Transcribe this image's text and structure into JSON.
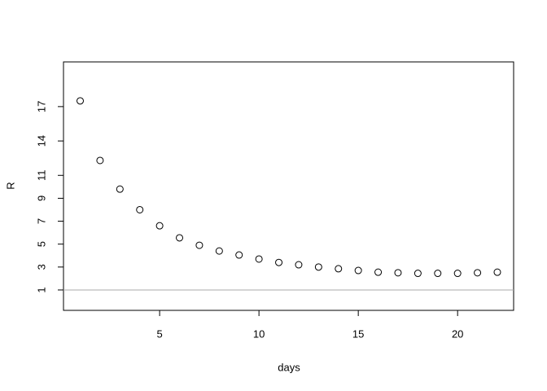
{
  "chart_data": {
    "type": "scatter",
    "x_label": "days",
    "y_label": "R",
    "x": [
      1,
      2,
      3,
      4,
      5,
      6,
      7,
      8,
      9,
      10,
      11,
      12,
      13,
      14,
      15,
      16,
      17,
      18,
      19,
      20,
      21,
      22
    ],
    "series": [
      {
        "color": "#000000",
        "values": [
          17.5,
          12.3,
          9.8,
          8.0,
          6.6,
          5.55,
          4.9,
          4.4,
          4.05,
          3.7,
          3.4,
          3.2,
          3.0,
          2.85,
          2.7,
          2.55,
          2.5,
          2.45,
          2.45,
          2.45,
          2.5,
          2.55
        ]
      }
    ],
    "xlim": [
      0.16,
      22.82
    ],
    "ylim": [
      -0.78,
      20.9
    ],
    "xticks": [
      5,
      10,
      15,
      20
    ],
    "yticks": [
      1,
      3,
      5,
      7,
      9,
      11,
      14,
      17
    ],
    "hline": {
      "value": 1,
      "color": "#aaaaaa"
    }
  }
}
